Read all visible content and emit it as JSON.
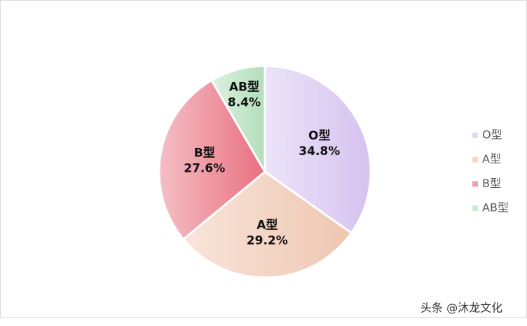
{
  "chart_data": {
    "type": "pie",
    "categories": [
      "O型",
      "A型",
      "B型",
      "AB型"
    ],
    "values": [
      34.8,
      29.2,
      27.6,
      8.4
    ],
    "value_labels": [
      "34.8%",
      "29.2%",
      "27.6%",
      "8.4%"
    ],
    "colors": [
      "#d5c2f0",
      "#efc6b0",
      "#e8707f",
      "#b3debb"
    ],
    "legend": "right"
  },
  "watermark": "头条 @沐龙文化"
}
